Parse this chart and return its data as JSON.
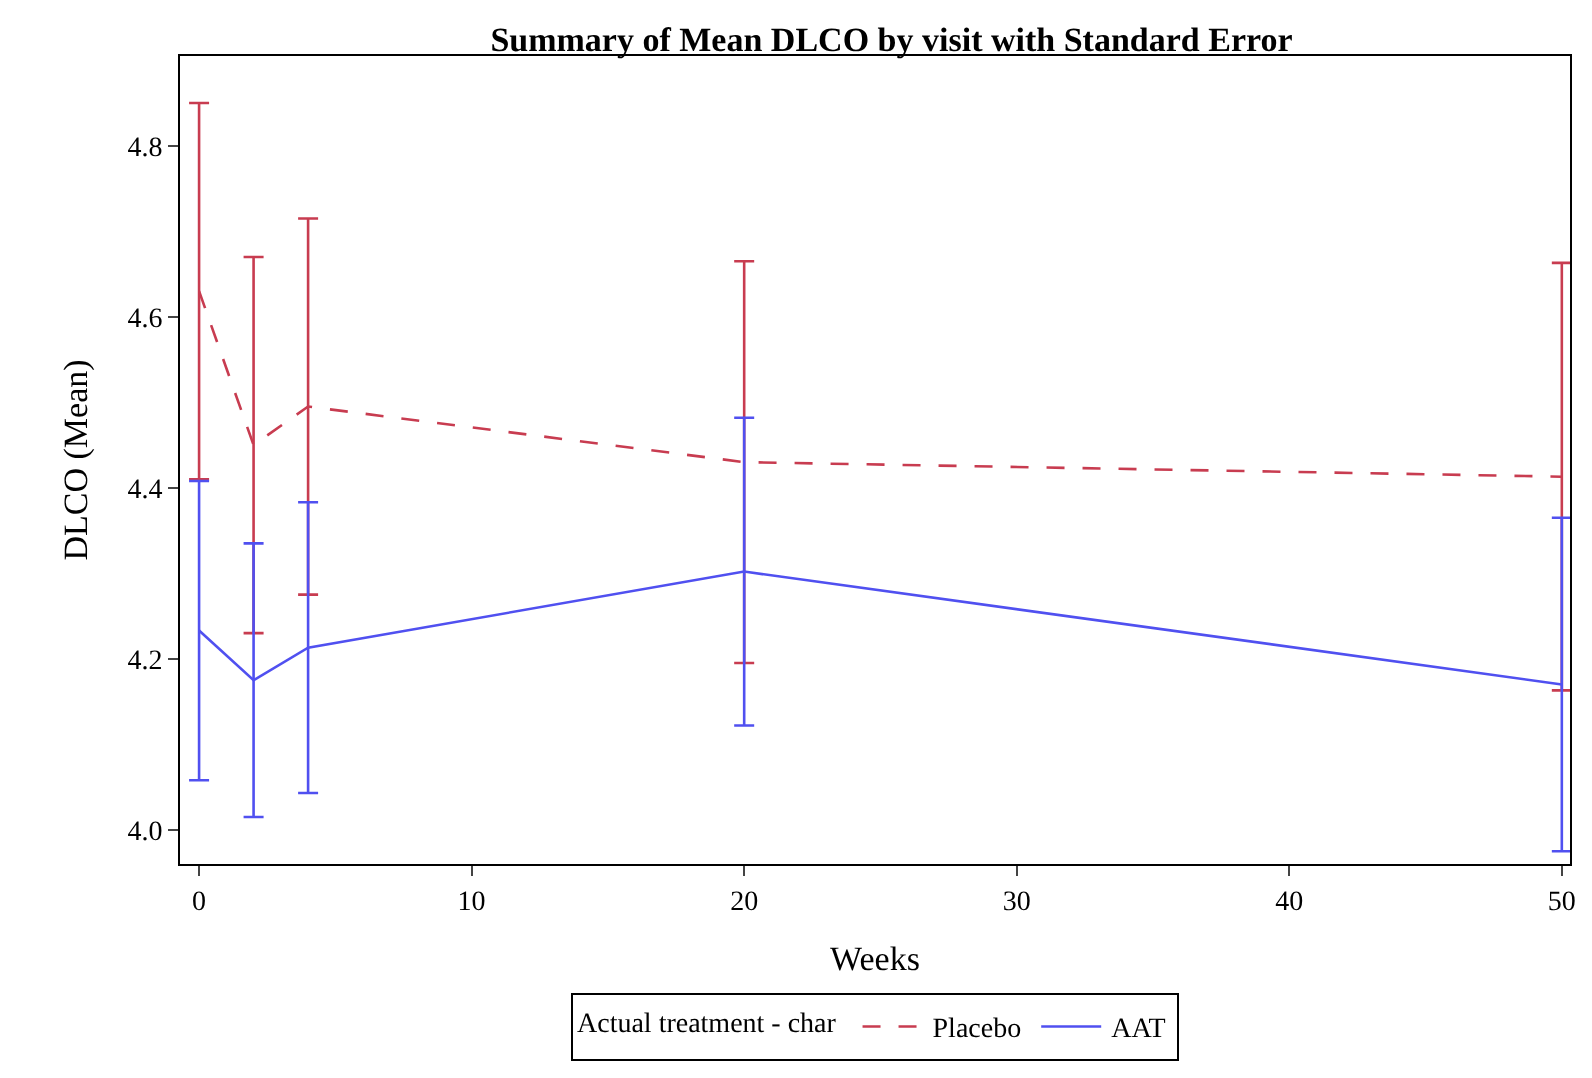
{
  "chart_data": {
    "type": "line",
    "title": "Summary of Mean DLCO by visit with Standard Error",
    "xlabel": "Weeks",
    "ylabel": "DLCO (Mean)",
    "legend_title": "Actual treatment - char",
    "x": [
      0,
      2,
      4,
      20,
      50
    ],
    "series": [
      {
        "name": "Placebo",
        "color": "#c83c50",
        "line_style": "dashed",
        "values": [
          4.63,
          4.45,
          4.495,
          4.43,
          4.413
        ],
        "errors": [
          0.22,
          0.22,
          0.22,
          0.235,
          0.25
        ]
      },
      {
        "name": "AAT",
        "color": "#5050f0",
        "line_style": "solid",
        "values": [
          4.233,
          4.175,
          4.213,
          4.302,
          4.17
        ],
        "errors": [
          0.175,
          0.16,
          0.17,
          0.18,
          0.195
        ]
      }
    ],
    "xlim": [
      -0.7,
      50.3
    ],
    "xticks": [
      0,
      10,
      20,
      30,
      40,
      50
    ],
    "ylim": [
      3.96,
      4.905
    ],
    "yticks": [
      {
        "value": 4.0,
        "label": "4.0"
      },
      {
        "value": 4.2,
        "label": "4.2"
      },
      {
        "value": 4.4,
        "label": "4.4"
      },
      {
        "value": 4.6,
        "label": "4.6"
      },
      {
        "value": 4.8,
        "label": "4.8"
      }
    ],
    "legend": "bottom",
    "marker": "none"
  }
}
